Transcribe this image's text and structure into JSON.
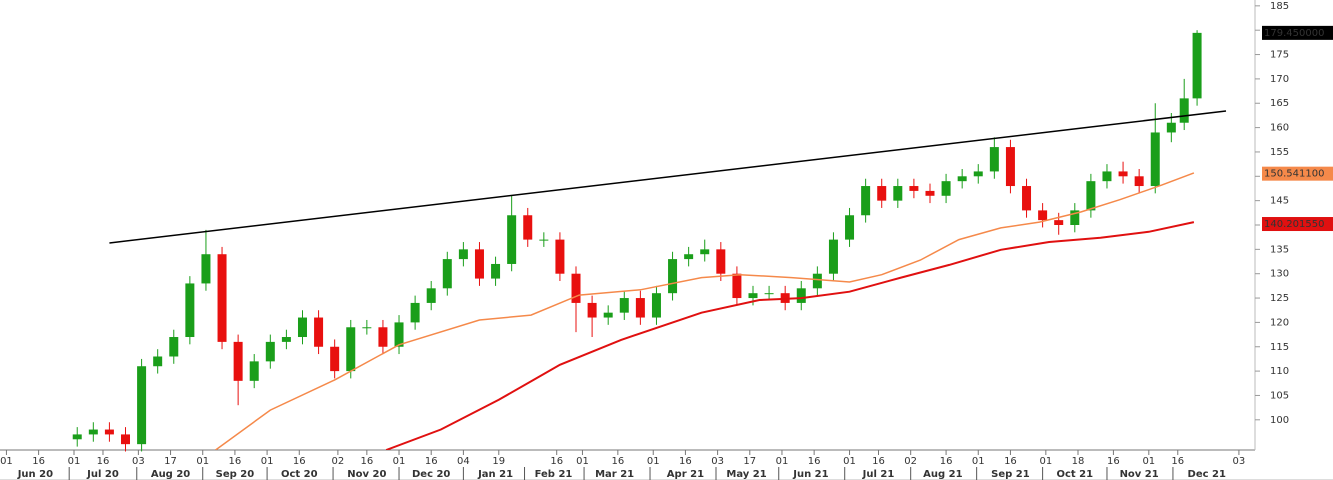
{
  "chart_data": {
    "type": "candlestick",
    "up_color": "#1a9e1a",
    "down_color": "#e8100f",
    "xlim": [
      -2,
      388
    ],
    "ylim": [
      93.8,
      186.2
    ],
    "yticks": [
      100,
      105,
      110,
      115,
      120,
      125,
      130,
      135,
      140,
      145,
      150,
      155,
      160,
      165,
      170,
      175,
      180,
      185
    ],
    "xticks": [
      {
        "value": 0,
        "label": "01"
      },
      {
        "value": 10,
        "label": "16"
      },
      {
        "value": 21,
        "label": "01"
      },
      {
        "value": 30,
        "label": "16"
      },
      {
        "value": 41,
        "label": "03"
      },
      {
        "value": 51,
        "label": "17"
      },
      {
        "value": 61,
        "label": "01"
      },
      {
        "value": 71,
        "label": "16"
      },
      {
        "value": 81,
        "label": "01"
      },
      {
        "value": 91,
        "label": "16"
      },
      {
        "value": 103,
        "label": "02"
      },
      {
        "value": 112,
        "label": "16"
      },
      {
        "value": 122,
        "label": "01"
      },
      {
        "value": 132,
        "label": "16"
      },
      {
        "value": 142,
        "label": "04"
      },
      {
        "value": 153,
        "label": "19"
      },
      {
        "value": 171,
        "label": "16"
      },
      {
        "value": 179,
        "label": "01"
      },
      {
        "value": 190,
        "label": "16"
      },
      {
        "value": 201,
        "label": "01"
      },
      {
        "value": 211,
        "label": "16"
      },
      {
        "value": 221,
        "label": "03"
      },
      {
        "value": 231,
        "label": "17"
      },
      {
        "value": 241,
        "label": "01"
      },
      {
        "value": 251,
        "label": "16"
      },
      {
        "value": 262,
        "label": "01"
      },
      {
        "value": 271,
        "label": "16"
      },
      {
        "value": 281,
        "label": "02"
      },
      {
        "value": 292,
        "label": "16"
      },
      {
        "value": 302,
        "label": "01"
      },
      {
        "value": 312,
        "label": "16"
      },
      {
        "value": 323,
        "label": "01"
      },
      {
        "value": 333,
        "label": "18"
      },
      {
        "value": 344,
        "label": "16"
      },
      {
        "value": 355,
        "label": "01"
      },
      {
        "value": 364,
        "label": "16"
      },
      {
        "value": 383,
        "label": "03"
      }
    ],
    "month_labels": [
      {
        "value": 9,
        "label": "Jun 20"
      },
      {
        "value": 30,
        "label": "Jul 20"
      },
      {
        "value": 51,
        "label": "Aug 20"
      },
      {
        "value": 71,
        "label": "Sep 20"
      },
      {
        "value": 91,
        "label": "Oct 20"
      },
      {
        "value": 112,
        "label": "Nov 20"
      },
      {
        "value": 132,
        "label": "Dec 20"
      },
      {
        "value": 152,
        "label": "Jan 21"
      },
      {
        "value": 170,
        "label": "Feb 21"
      },
      {
        "value": 189,
        "label": "Mar 21"
      },
      {
        "value": 211,
        "label": "Apr 21"
      },
      {
        "value": 230,
        "label": "May 21"
      },
      {
        "value": 250,
        "label": "Jun 21"
      },
      {
        "value": 271,
        "label": "Jul 21"
      },
      {
        "value": 291,
        "label": "Aug 21"
      },
      {
        "value": 312,
        "label": "Sep 21"
      },
      {
        "value": 332,
        "label": "Oct 21"
      },
      {
        "value": 352,
        "label": "Nov 21"
      },
      {
        "value": 373,
        "label": "Dec 21"
      }
    ],
    "ohlc": {
      "x": [
        22,
        27,
        32,
        37,
        42,
        47,
        52,
        57,
        62,
        67,
        72,
        77,
        82,
        87,
        92,
        97,
        102,
        107,
        112,
        117,
        122,
        127,
        132,
        137,
        142,
        147,
        152,
        157,
        162,
        167,
        172,
        177,
        182,
        187,
        192,
        197,
        202,
        207,
        212,
        217,
        222,
        227,
        232,
        237,
        242,
        247,
        252,
        257,
        262,
        267,
        272,
        277,
        282,
        287,
        292,
        297,
        302,
        307,
        312,
        317,
        322,
        327,
        332,
        337,
        342,
        347,
        352,
        357,
        362,
        366,
        370
      ],
      "open": [
        96,
        97,
        98,
        97,
        95,
        111,
        113,
        117,
        128,
        134,
        116,
        108,
        112,
        116,
        117,
        121,
        115,
        110,
        119,
        119,
        115,
        120,
        124,
        127,
        133,
        135,
        129,
        132,
        142,
        137,
        137,
        130,
        124,
        121,
        122,
        125,
        121,
        126,
        133,
        134,
        135,
        130,
        125,
        126,
        126,
        124,
        127,
        130,
        137,
        142,
        148,
        145,
        148,
        147,
        146,
        149,
        150,
        151,
        156,
        148,
        143,
        141,
        140,
        143,
        149,
        151,
        150,
        148,
        159,
        161,
        166
      ],
      "high": [
        98.5,
        99.5,
        99.5,
        98.5,
        112.5,
        114.5,
        118.5,
        129.5,
        139,
        135.5,
        117.5,
        113.5,
        117.5,
        118.5,
        122.5,
        122.5,
        116.5,
        120.5,
        120.5,
        120.5,
        121.5,
        125.5,
        128.5,
        134.5,
        136.5,
        136.5,
        133.5,
        146,
        143.5,
        138.5,
        138.5,
        131.5,
        125.5,
        123.5,
        126.5,
        126.5,
        127.5,
        134.5,
        135.5,
        137,
        136.5,
        131.5,
        127.5,
        127.5,
        127.5,
        128.5,
        131.5,
        138.5,
        143.5,
        149.5,
        149.5,
        149.5,
        149.5,
        148.5,
        150.5,
        151.5,
        152.5,
        158,
        157.5,
        149.5,
        144.5,
        142.5,
        144.5,
        150.5,
        152.5,
        153,
        151.5,
        165,
        163,
        170,
        180
      ],
      "low": [
        94.5,
        95.5,
        95.5,
        93.5,
        93.5,
        109.5,
        111.5,
        115.5,
        126.5,
        114.5,
        103,
        106.5,
        110.5,
        114.5,
        115.5,
        113.5,
        108.5,
        108.5,
        117.5,
        113.5,
        113.5,
        118.5,
        122.5,
        125.5,
        131.5,
        127.5,
        127.5,
        130.5,
        135.5,
        135.5,
        128.5,
        118,
        117,
        119.5,
        120.5,
        119.5,
        119.5,
        124.5,
        131.5,
        132.5,
        128.5,
        123.5,
        123.5,
        124.5,
        122.5,
        122.5,
        125.5,
        128.5,
        135.5,
        140.5,
        143.5,
        143.5,
        145.5,
        144.5,
        144.5,
        147.5,
        148.5,
        149.5,
        146.5,
        141.5,
        139.5,
        138,
        138.5,
        141.5,
        147.5,
        148.5,
        146.5,
        146.5,
        157,
        159.5,
        164.5
      ],
      "close": [
        97,
        98,
        97,
        95,
        111,
        113,
        117,
        128,
        134,
        116,
        108,
        112,
        116,
        117,
        121,
        115,
        110,
        119,
        119,
        115,
        120,
        124,
        127,
        133,
        135,
        129,
        132,
        142,
        137,
        137,
        130,
        124,
        121,
        122,
        125,
        121,
        126,
        133,
        134,
        135,
        130,
        125,
        126,
        126,
        124,
        127,
        130,
        137,
        142,
        148,
        145,
        148,
        147,
        146,
        149,
        150,
        151,
        156,
        148,
        143,
        141,
        140,
        143,
        149,
        151,
        150,
        148,
        159,
        161,
        166,
        179.45
      ]
    },
    "lines": [
      {
        "color": "#000000",
        "width": 1.5,
        "x": [
          32,
          379
        ],
        "values": [
          136.3,
          163.4
        ]
      },
      {
        "color": "#f5894a",
        "width": 1.5,
        "x": [
          65,
          82,
          102,
          122,
          147,
          163,
          178,
          197,
          216,
          228,
          244,
          262,
          272,
          284,
          296,
          309,
          321,
          334,
          346,
          359,
          369
        ],
        "values": [
          93.8,
          102.0,
          108.2,
          115.4,
          120.5,
          121.5,
          125.6,
          126.7,
          129.2,
          129.8,
          129.2,
          128.3,
          129.8,
          132.8,
          137.0,
          139.4,
          140.6,
          142.7,
          145.2,
          148.2,
          150.7
        ]
      },
      {
        "color": "#e01010",
        "width": 2,
        "x": [
          118,
          135,
          153,
          172,
          191,
          216,
          234,
          247,
          262,
          278,
          293,
          309,
          324,
          340,
          355,
          369
        ],
        "values": [
          93.8,
          98.0,
          104.1,
          111.3,
          116.4,
          122.0,
          124.6,
          125.0,
          126.3,
          129.2,
          131.8,
          134.9,
          136.5,
          137.4,
          138.6,
          140.6
        ]
      }
    ],
    "price_labels": [
      {
        "value": 179.45,
        "label": "179.450000",
        "color": "#000000"
      },
      {
        "value": 150.5411,
        "label": "150.541100",
        "color": "#f5894a"
      },
      {
        "value": 140.20155,
        "label": "140.201550",
        "color": "#e01010"
      }
    ]
  }
}
